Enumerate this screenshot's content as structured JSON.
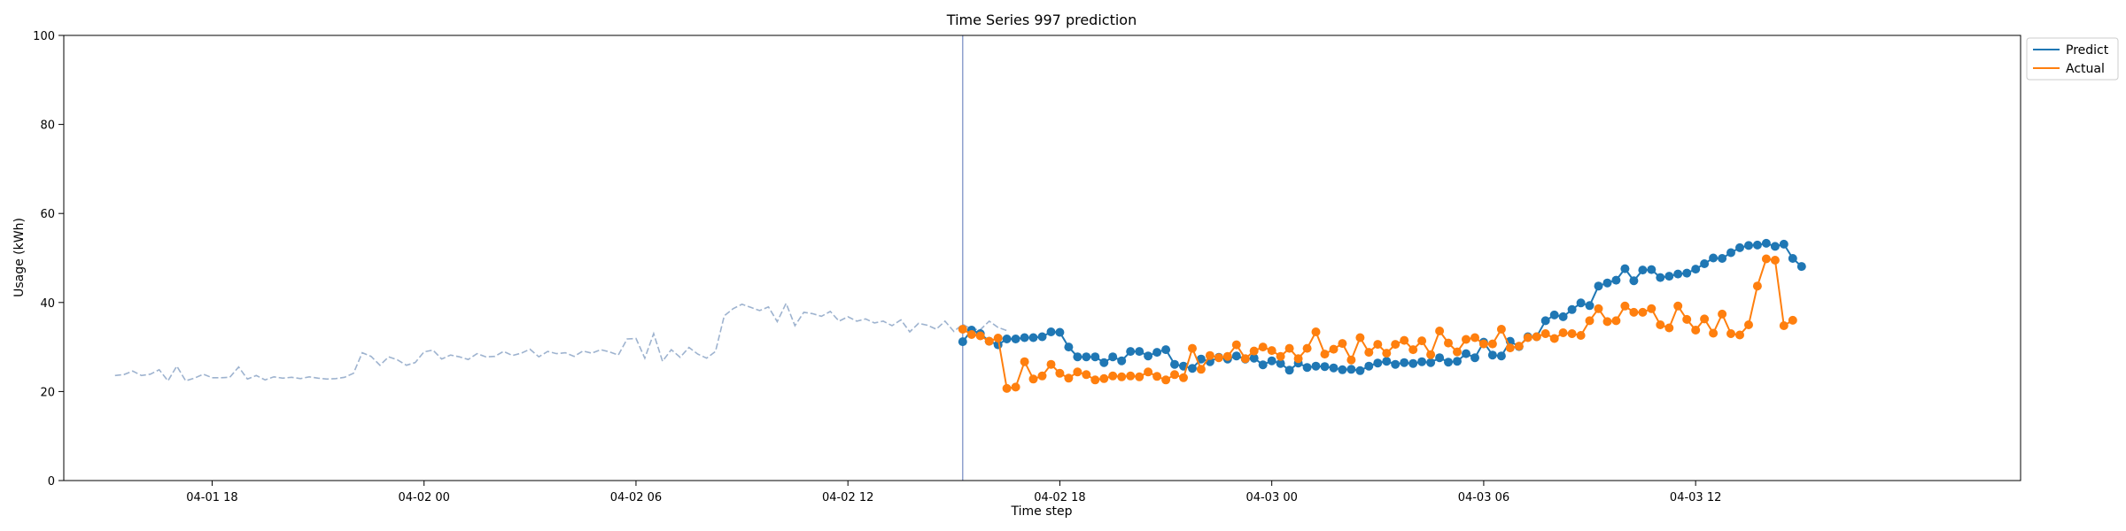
{
  "chart_data": {
    "type": "line",
    "title": "Time Series 997 prediction",
    "xlabel": "Time step",
    "ylabel": "Usage (kWh)",
    "ylim": [
      0,
      100
    ],
    "yticks": [
      0,
      20,
      40,
      60,
      80,
      100
    ],
    "xlim": [
      "2024-04-01 13:48",
      "2024-04-03 21:12"
    ],
    "xticks": [
      {
        "value": "2024-04-01 18:00",
        "label": "04-01 18"
      },
      {
        "value": "2024-04-02 00:00",
        "label": "04-02 00"
      },
      {
        "value": "2024-04-02 06:00",
        "label": "04-02 06"
      },
      {
        "value": "2024-04-02 12:00",
        "label": "04-02 12"
      },
      {
        "value": "2024-04-02 18:00",
        "label": "04-02 18"
      },
      {
        "value": "2024-04-03 00:00",
        "label": "04-03 00"
      },
      {
        "value": "2024-04-03 06:00",
        "label": "04-03 06"
      },
      {
        "value": "2024-04-03 12:00",
        "label": "04-03 12"
      }
    ],
    "grid": false,
    "legend_placement": "upper-right-outside",
    "split_time": "2024-04-02 15:15",
    "history": {
      "start": "2024-04-01 15:15",
      "interval_minutes": 15,
      "color": "#9eb3cf",
      "style": "dashed",
      "values": [
        23.6,
        23.8,
        24.6,
        23.6,
        23.9,
        24.9,
        22.4,
        25.7,
        22.4,
        23.0,
        23.9,
        23.1,
        23.1,
        23.2,
        25.5,
        22.8,
        23.6,
        22.6,
        23.3,
        23.0,
        23.2,
        22.9,
        23.3,
        23.0,
        22.8,
        22.9,
        23.2,
        24.1,
        28.7,
        27.9,
        25.9,
        27.8,
        27.1,
        25.9,
        26.5,
        28.9,
        29.3,
        27.3,
        28.2,
        27.8,
        27.2,
        28.5,
        27.8,
        27.9,
        29.0,
        28.1,
        28.6,
        29.5,
        27.8,
        29.0,
        28.5,
        28.7,
        27.9,
        29.1,
        28.6,
        29.4,
        28.9,
        28.2,
        31.8,
        31.9,
        27.5,
        33.0,
        26.8,
        29.4,
        27.7,
        29.9,
        28.4,
        27.5,
        29.0,
        37.0,
        38.6,
        39.6,
        38.9,
        38.2,
        39.0,
        35.7,
        39.8,
        34.8,
        37.8,
        37.5,
        36.9,
        38.0,
        35.8,
        36.8,
        35.8,
        36.3,
        35.4,
        35.8,
        34.8,
        36.1,
        33.4,
        35.3,
        34.9,
        34.0,
        35.8,
        33.5,
        35.1,
        34.0,
        33.9,
        35.8,
        34.4,
        33.7
      ]
    },
    "series": [
      {
        "name": "Predict",
        "color": "#1f77b4",
        "start": "2024-04-02 15:15",
        "interval_minutes": 15,
        "values": [
          31.2,
          33.8,
          33.0,
          31.3,
          30.5,
          31.8,
          31.8,
          32.1,
          32.1,
          32.3,
          33.4,
          33.3,
          30.0,
          27.8,
          27.8,
          27.8,
          26.5,
          27.8,
          26.9,
          29.0,
          29.0,
          28.0,
          28.8,
          29.4,
          26.1,
          25.7,
          25.2,
          27.3,
          26.7,
          27.7,
          27.3,
          28.0,
          27.3,
          27.5,
          26.0,
          26.9,
          26.3,
          24.8,
          26.4,
          25.4,
          25.7,
          25.6,
          25.3,
          24.9,
          25.0,
          24.7,
          25.7,
          26.4,
          26.8,
          26.1,
          26.5,
          26.3,
          26.7,
          26.5,
          27.6,
          26.6,
          26.8,
          28.5,
          27.6,
          31.1,
          28.2,
          28.0,
          31.3,
          30.1,
          32.3,
          32.3,
          35.9,
          37.2,
          36.8,
          38.4,
          39.9,
          39.3,
          43.7,
          44.4,
          45.0,
          47.6,
          44.9,
          47.3,
          47.4,
          45.6,
          45.9,
          46.4,
          46.6,
          47.5,
          48.7,
          50.0,
          49.9,
          51.2,
          52.3,
          52.8,
          52.9,
          53.3,
          52.6,
          53.1,
          49.9,
          48.1
        ]
      },
      {
        "name": "Actual",
        "color": "#ff7f0e",
        "start": "2024-04-02 15:15",
        "interval_minutes": 15,
        "values": [
          34.0,
          32.8,
          32.5,
          31.3,
          32.0,
          20.7,
          21.0,
          26.7,
          22.8,
          23.5,
          26.1,
          24.1,
          23.0,
          24.4,
          23.8,
          22.6,
          22.9,
          23.5,
          23.3,
          23.5,
          23.3,
          24.4,
          23.4,
          22.6,
          23.8,
          23.1,
          29.7,
          25.0,
          28.1,
          27.6,
          27.9,
          30.5,
          27.4,
          29.1,
          30.0,
          29.2,
          27.9,
          29.7,
          27.4,
          29.7,
          33.4,
          28.4,
          29.5,
          30.8,
          27.1,
          32.1,
          28.8,
          30.6,
          28.6,
          30.6,
          31.5,
          29.4,
          31.4,
          28.3,
          33.6,
          30.9,
          28.9,
          31.7,
          32.1,
          30.7,
          30.7,
          34.0,
          29.8,
          30.2,
          32.1,
          32.3,
          33.0,
          31.9,
          33.2,
          33.0,
          32.6,
          35.9,
          38.6,
          35.7,
          35.9,
          39.2,
          37.8,
          37.8,
          38.6,
          35.0,
          34.3,
          39.2,
          36.2,
          33.8,
          36.3,
          33.1,
          37.4,
          33.0,
          32.7,
          35.0,
          43.7,
          49.8,
          49.5,
          34.8,
          36.0
        ]
      }
    ]
  }
}
